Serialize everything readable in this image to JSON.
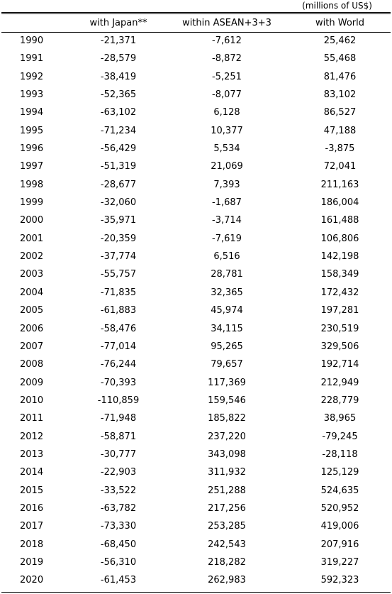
{
  "units_note": "(millions of US$)",
  "columns": [
    "",
    "with Japan**",
    "within ASEAN+3+3",
    "with World"
  ],
  "rows": [
    [
      "1990",
      "-21,371",
      "-7,612",
      "25,462"
    ],
    [
      "1991",
      "-28,579",
      "-8,872",
      "55,468"
    ],
    [
      "1992",
      "-38,419",
      "-5,251",
      "81,476"
    ],
    [
      "1993",
      "-52,365",
      "-8,077",
      "83,102"
    ],
    [
      "1994",
      "-63,102",
      "6,128",
      "86,527"
    ],
    [
      "1995",
      "-71,234",
      "10,377",
      "47,188"
    ],
    [
      "1996",
      "-56,429",
      "5,534",
      "-3,875"
    ],
    [
      "1997",
      "-51,319",
      "21,069",
      "72,041"
    ],
    [
      "1998",
      "-28,677",
      "7,393",
      "211,163"
    ],
    [
      "1999",
      "-32,060",
      "-1,687",
      "186,004"
    ],
    [
      "2000",
      "-35,971",
      "-3,714",
      "161,488"
    ],
    [
      "2001",
      "-20,359",
      "-7,619",
      "106,806"
    ],
    [
      "2002",
      "-37,774",
      "6,516",
      "142,198"
    ],
    [
      "2003",
      "-55,757",
      "28,781",
      "158,349"
    ],
    [
      "2004",
      "-71,835",
      "32,365",
      "172,432"
    ],
    [
      "2005",
      "-61,883",
      "45,974",
      "197,281"
    ],
    [
      "2006",
      "-58,476",
      "34,115",
      "230,519"
    ],
    [
      "2007",
      "-77,014",
      "95,265",
      "329,506"
    ],
    [
      "2008",
      "-76,244",
      "79,657",
      "192,714"
    ],
    [
      "2009",
      "-70,393",
      "117,369",
      "212,949"
    ],
    [
      "2010",
      "-110,859",
      "159,546",
      "228,779"
    ],
    [
      "2011",
      "-71,948",
      "185,822",
      "38,965"
    ],
    [
      "2012",
      "-58,871",
      "237,220",
      "-79,245"
    ],
    [
      "2013",
      "-30,777",
      "343,098",
      "-28,118"
    ],
    [
      "2014",
      "-22,903",
      "311,932",
      "125,129"
    ],
    [
      "2015",
      "-33,522",
      "251,288",
      "524,635"
    ],
    [
      "2016",
      "-63,782",
      "217,256",
      "520,952"
    ],
    [
      "2017",
      "-73,330",
      "253,285",
      "419,006"
    ],
    [
      "2018",
      "-68,450",
      "242,543",
      "207,916"
    ],
    [
      "2019",
      "-56,310",
      "218,282",
      "319,227"
    ],
    [
      "2020",
      "-61,453",
      "262,983",
      "592,323"
    ]
  ]
}
